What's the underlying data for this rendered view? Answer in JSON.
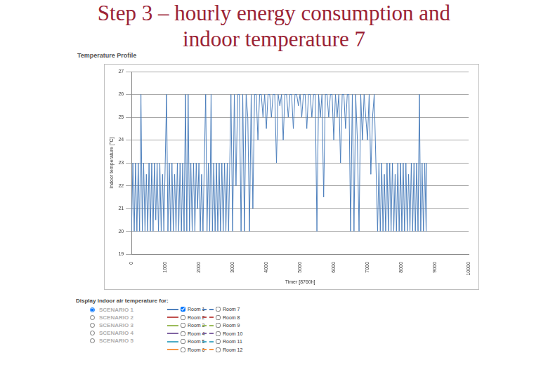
{
  "slide_title": [
    "Step 3 – hourly energy consumption and",
    "indoor temperature 7"
  ],
  "chart_data": {
    "type": "line",
    "title": "Temperature Profile",
    "x_label": "Timer [8760h]",
    "y_label": "Indoor temperature [°C]",
    "x": [
      0,
      40,
      80,
      120,
      160,
      200,
      240,
      280,
      320,
      360,
      400,
      440,
      480,
      520,
      560,
      600,
      640,
      680,
      720,
      760,
      800,
      840,
      880,
      920,
      960,
      1000,
      1040,
      1080,
      1120,
      1160,
      1200,
      1240,
      1280,
      1320,
      1360,
      1400,
      1440,
      1480,
      1520,
      1560,
      1600,
      1640,
      1680,
      1720,
      1760,
      1800,
      1840,
      1880,
      1920,
      1960,
      2000,
      2040,
      2080,
      2120,
      2160,
      2200,
      2240,
      2280,
      2320,
      2360,
      2400,
      2440,
      2480,
      2520,
      2560,
      2600,
      2640,
      2680,
      2720,
      2760,
      2800,
      2840,
      2880,
      2950,
      3000,
      3050,
      3100,
      3150,
      3200,
      3250,
      3300,
      3350,
      3400,
      3450,
      3500,
      3550,
      3600,
      3650,
      3700,
      3750,
      3800,
      3850,
      3900,
      3950,
      4000,
      4050,
      4100,
      4150,
      4200,
      4250,
      4300,
      4350,
      4400,
      4450,
      4500,
      4550,
      4600,
      4650,
      4700,
      4750,
      4800,
      4850,
      4900,
      4950,
      5000,
      5050,
      5100,
      5150,
      5200,
      5250,
      5300,
      5350,
      5400,
      5450,
      5500,
      5550,
      5600,
      5650,
      5700,
      5750,
      5800,
      5850,
      5900,
      5950,
      6000,
      6050,
      6100,
      6150,
      6200,
      6250,
      6300,
      6350,
      6400,
      6450,
      6500,
      6550,
      6600,
      6650,
      6700,
      6750,
      6800,
      6850,
      6900,
      6950,
      7000,
      7050,
      7100,
      7150,
      7200,
      7250,
      7300,
      7340,
      7380,
      7420,
      7460,
      7500,
      7540,
      7580,
      7620,
      7660,
      7700,
      7740,
      7780,
      7820,
      7860,
      7900,
      7940,
      7980,
      8020,
      8060,
      8100,
      8140,
      8180,
      8220,
      8260,
      8300,
      8340,
      8380,
      8420,
      8460,
      8500,
      8540,
      8580,
      8620,
      8660,
      8700,
      8740,
      8760
    ],
    "series": [
      {
        "color": "#4f81bd",
        "values": [
          20,
          23,
          20,
          23,
          20,
          23,
          20,
          26,
          20,
          23,
          20,
          22.5,
          20,
          23,
          20,
          23,
          20,
          23,
          20.5,
          23,
          20,
          23,
          20,
          22.5,
          20,
          23,
          26,
          20,
          23,
          20,
          23,
          20,
          22.5,
          20,
          23,
          20,
          23,
          20,
          23,
          20,
          26,
          20,
          26,
          20,
          23,
          20,
          23,
          20,
          23,
          21,
          23,
          20,
          22.5,
          20,
          23,
          26,
          20,
          23,
          20,
          26,
          20,
          23,
          20,
          23,
          20,
          23,
          20,
          23,
          20,
          23,
          20,
          23,
          20,
          26,
          20,
          26,
          22,
          26,
          26,
          20,
          26,
          20,
          26,
          25,
          20,
          26,
          21,
          26,
          26,
          24,
          26,
          26,
          25,
          26,
          24.5,
          26,
          26,
          25,
          26,
          26,
          23,
          26,
          25.5,
          26,
          24,
          26,
          26,
          25,
          26,
          26,
          24.5,
          26,
          26,
          25.5,
          26,
          25,
          26,
          26,
          24.5,
          26,
          26,
          25,
          26,
          26,
          20,
          26,
          25,
          26,
          21.5,
          26,
          26,
          25,
          26,
          26,
          24,
          26,
          25,
          26,
          23,
          26,
          26,
          24.5,
          26,
          26,
          20,
          26,
          20,
          26,
          24,
          20,
          26,
          24,
          26,
          25,
          24,
          26,
          22.5,
          25,
          26,
          23,
          20,
          23,
          20,
          23,
          20,
          22.5,
          20,
          23,
          20,
          23,
          20,
          23,
          20,
          22.5,
          20,
          23,
          20,
          23,
          20,
          23,
          20,
          23,
          20,
          22.5,
          20,
          23,
          20,
          23,
          20,
          23,
          20,
          26,
          20,
          23,
          20,
          23,
          20,
          23
        ]
      }
    ],
    "xlim": [
      0,
      10000
    ],
    "xticks": [
      0,
      1000,
      2000,
      3000,
      4000,
      5000,
      6000,
      7000,
      8000,
      9000,
      10000
    ],
    "ylim": [
      19,
      27
    ],
    "yticks": [
      19,
      20,
      21,
      22,
      23,
      24,
      25,
      26,
      27
    ],
    "grid": true
  },
  "controls": {
    "title": "Display indoor air temperature for:",
    "scenarios": [
      "SCENARIO 1",
      "SCENARIO 2",
      "SCENARIO 3",
      "SCENARIO 4",
      "SCENARIO 5"
    ],
    "rooms": [
      {
        "name": "Room 1",
        "color": "#4f81bd",
        "line_style": "solid",
        "checked": true
      },
      {
        "name": "Room 2",
        "color": "#c0504d",
        "line_style": "solid",
        "checked": false
      },
      {
        "name": "Room 3",
        "color": "#9bbb59",
        "line_style": "solid",
        "checked": false
      },
      {
        "name": "Room 4",
        "color": "#8064a2",
        "line_style": "solid",
        "checked": false
      },
      {
        "name": "Room 5",
        "color": "#4bacc6",
        "line_style": "solid",
        "checked": false
      },
      {
        "name": "Room 6",
        "color": "#f79646",
        "line_style": "solid",
        "checked": false
      },
      {
        "name": "Room 7",
        "color": "#4f81bd",
        "line_style": "dashed",
        "checked": false
      },
      {
        "name": "Room 8",
        "color": "#c0504d",
        "line_style": "dashed",
        "checked": false
      },
      {
        "name": "Room 9",
        "color": "#9bbb59",
        "line_style": "dashed",
        "checked": false
      },
      {
        "name": "Room 10",
        "color": "#8064a2",
        "line_style": "dashed",
        "checked": false
      },
      {
        "name": "Room 11",
        "color": "#4bacc6",
        "line_style": "dashed",
        "checked": false
      },
      {
        "name": "Room 12",
        "color": "#f79646",
        "line_style": "dashed",
        "checked": false
      }
    ]
  }
}
